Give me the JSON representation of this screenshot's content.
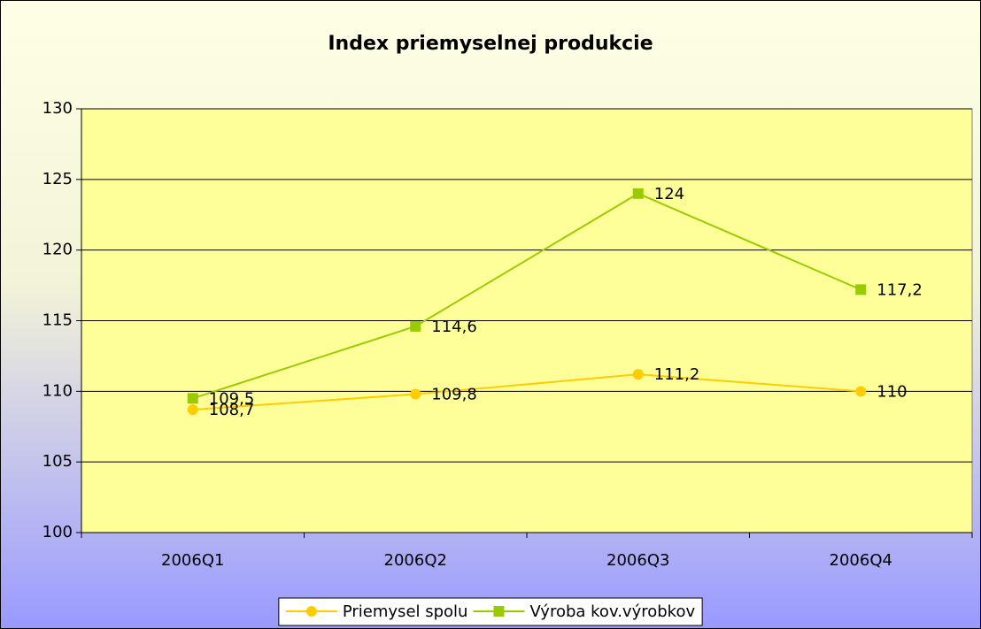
{
  "chart_data": {
    "type": "line",
    "title": "Index priemyselnej produkcie",
    "categories": [
      "2006Q1",
      "2006Q2",
      "2006Q3",
      "2006Q4"
    ],
    "series": [
      {
        "name": "Priemysel spolu",
        "color": "#ffcc00",
        "marker": "circle",
        "values": [
          108.7,
          109.8,
          111.2,
          110
        ],
        "value_labels": [
          "108,7",
          "109,8",
          "111,2",
          "110"
        ]
      },
      {
        "name": "Výroba kov.výrobkov",
        "color": "#99cc00",
        "marker": "square",
        "values": [
          109.5,
          114.6,
          124,
          117.2
        ],
        "value_labels": [
          "109,5",
          "114,6",
          "124",
          "117,2"
        ]
      }
    ],
    "ylim": [
      100,
      130
    ],
    "yticks": [
      100,
      105,
      110,
      115,
      120,
      125,
      130
    ],
    "grid": true,
    "legend": "bottom"
  }
}
